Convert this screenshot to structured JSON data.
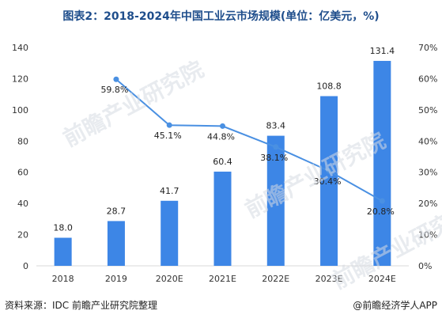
{
  "title": "图表2：2018-2024年中国工业云市场规模(单位：亿美元，%)",
  "footer": {
    "source": "资料来源：IDC 前瞻产业研究院整理",
    "brand": "@前瞻经济学人APP"
  },
  "watermark": "前瞻产业研究院",
  "colors": {
    "bar": "#3d86e6",
    "line": "#4a90e2",
    "title": "#1f4e8c"
  },
  "chart_data": {
    "type": "bar",
    "categories": [
      "2018",
      "2019",
      "2020E",
      "2021E",
      "2022E",
      "2023E",
      "2024E"
    ],
    "series": [
      {
        "values": [
          18.0,
          28.7,
          41.7,
          60.4,
          83.4,
          108.8,
          131.4
        ],
        "labels": [
          "18.0",
          "28.7",
          "41.7",
          "60.4",
          "83.4",
          "108.8",
          "131.4"
        ],
        "axis": "left",
        "kind": "bar"
      },
      {
        "values": [
          null,
          59.8,
          45.1,
          44.8,
          38.1,
          30.4,
          20.8
        ],
        "labels": [
          "",
          "59.8%",
          "45.1%",
          "44.8%",
          "38.1%",
          "30.4%",
          "20.8%"
        ],
        "axis": "right",
        "kind": "line"
      }
    ],
    "ylim": [
      0,
      140
    ],
    "y_ticks": [
      "0",
      "20",
      "40",
      "60",
      "80",
      "100",
      "120",
      "140"
    ],
    "y2lim": [
      0,
      70
    ],
    "y2_ticks": [
      "0%",
      "10%",
      "20%",
      "30%",
      "40%",
      "50%",
      "60%",
      "70%"
    ],
    "grid": false,
    "legend": "none"
  }
}
